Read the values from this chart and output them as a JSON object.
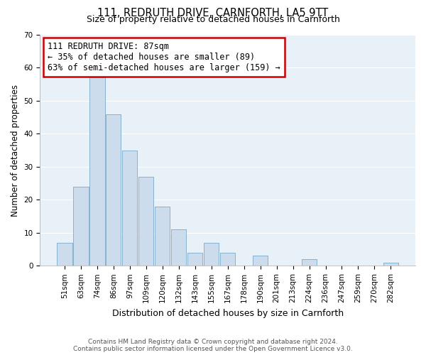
{
  "title": "111, REDRUTH DRIVE, CARNFORTH, LA5 9TT",
  "subtitle": "Size of property relative to detached houses in Carnforth",
  "xlabel": "Distribution of detached houses by size in Carnforth",
  "ylabel": "Number of detached properties",
  "bar_color": "#ccdcec",
  "bar_edge_color": "#7aaac8",
  "background_color": "#ffffff",
  "plot_bg_color": "#e8f0f8",
  "grid_color": "#ffffff",
  "bins": [
    "51sqm",
    "63sqm",
    "74sqm",
    "86sqm",
    "97sqm",
    "109sqm",
    "120sqm",
    "132sqm",
    "143sqm",
    "155sqm",
    "167sqm",
    "178sqm",
    "190sqm",
    "201sqm",
    "213sqm",
    "224sqm",
    "236sqm",
    "247sqm",
    "259sqm",
    "270sqm",
    "282sqm"
  ],
  "values": [
    7,
    24,
    57,
    46,
    35,
    27,
    18,
    11,
    4,
    7,
    4,
    0,
    3,
    0,
    0,
    2,
    0,
    0,
    0,
    0,
    1
  ],
  "ylim": [
    0,
    70
  ],
  "yticks": [
    0,
    10,
    20,
    30,
    40,
    50,
    60,
    70
  ],
  "annotation_title": "111 REDRUTH DRIVE: 87sqm",
  "annotation_line1": "← 35% of detached houses are smaller (89)",
  "annotation_line2": "63% of semi-detached houses are larger (159) →",
  "annotation_box_color": "#ffffff",
  "annotation_border_color": "#cc0000",
  "footer_line1": "Contains HM Land Registry data © Crown copyright and database right 2024.",
  "footer_line2": "Contains public sector information licensed under the Open Government Licence v3.0.",
  "title_fontsize": 10.5,
  "subtitle_fontsize": 9,
  "ylabel_fontsize": 8.5,
  "xlabel_fontsize": 9,
  "tick_fontsize": 7.5,
  "annotation_fontsize": 8.5,
  "footer_fontsize": 6.5
}
